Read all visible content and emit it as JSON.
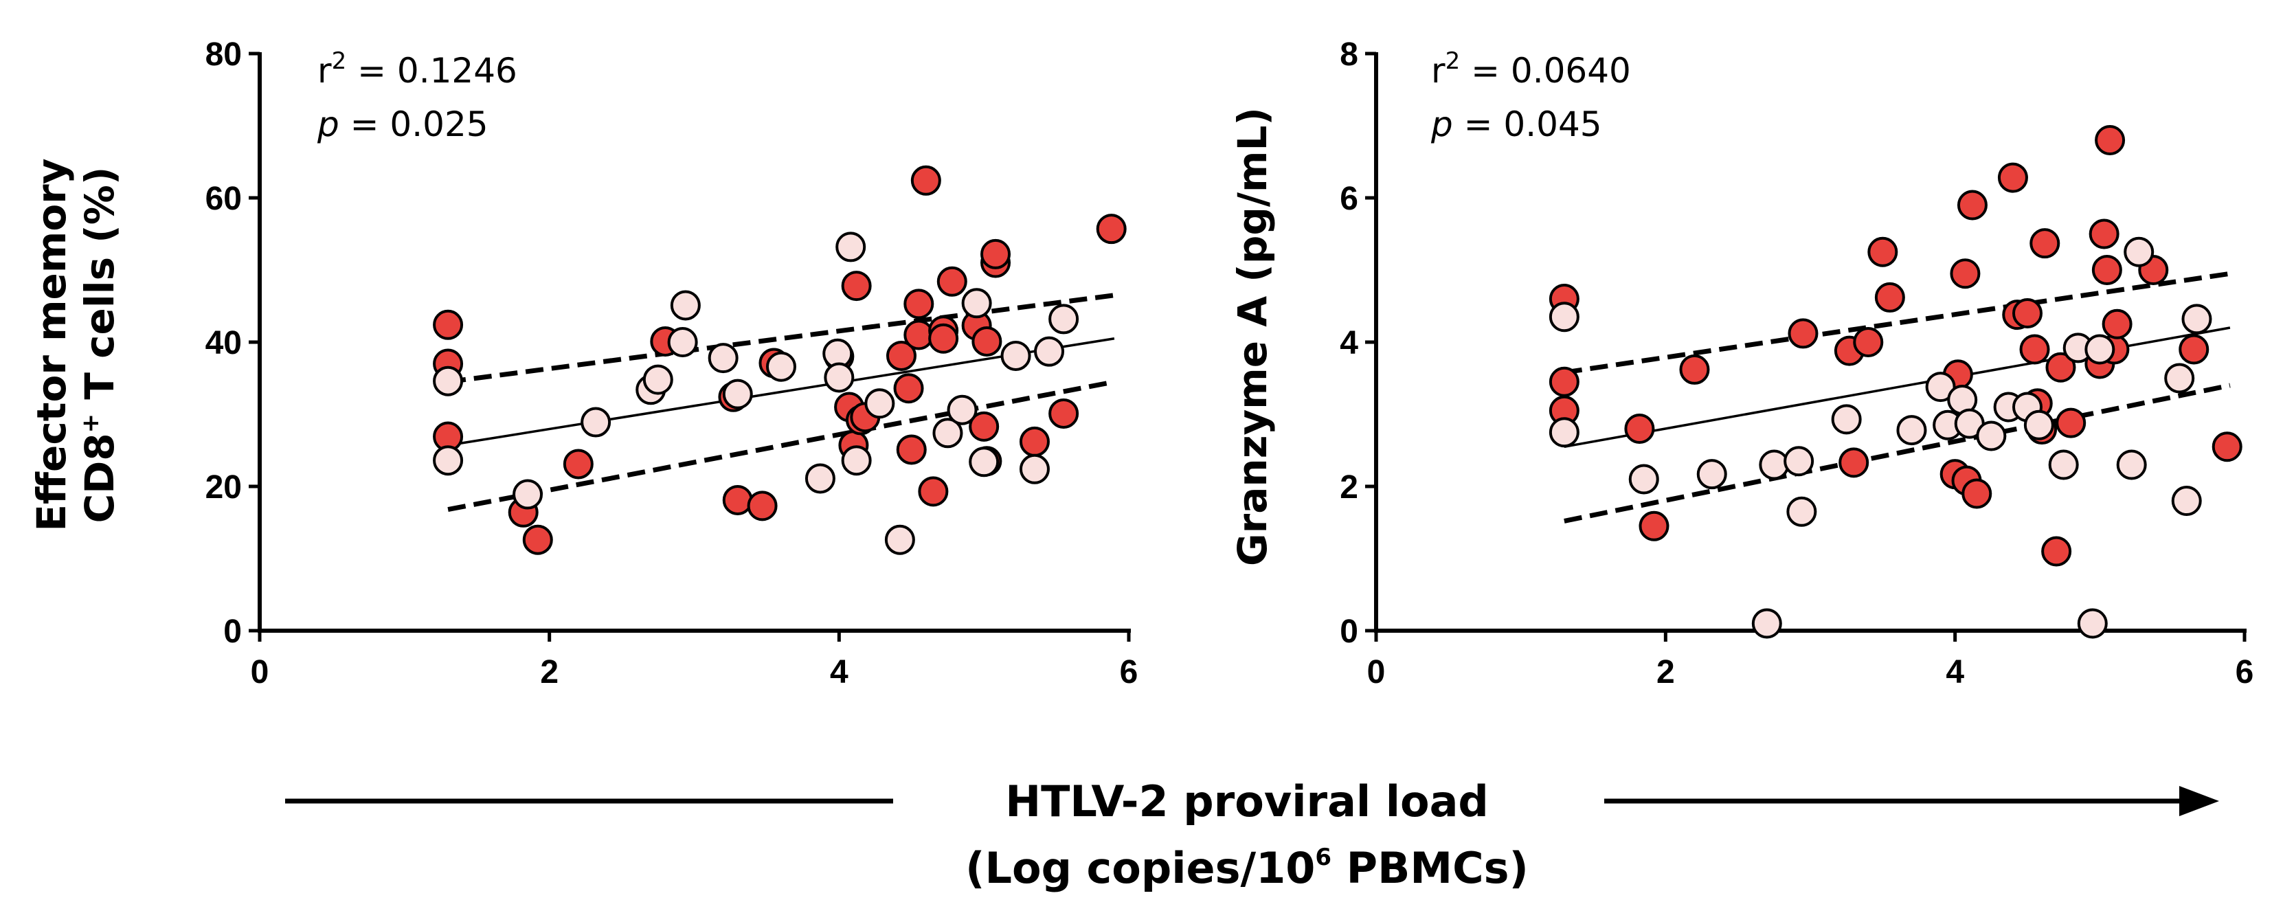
{
  "x_axis_shared": {
    "line1": "HTLV-2 proviral load",
    "line2_pre": "(Log copies/10",
    "line2_sup": "6",
    "line2_post": " PBMCs)"
  },
  "colors": {
    "red_fill": "#e8413c",
    "pink_fill": "#f9e0de",
    "stroke": "#000000"
  },
  "chart_data": [
    {
      "type": "scatter",
      "title": "",
      "ylabel_line1": "Effector memory",
      "ylabel_line2_pre": "CD8",
      "ylabel_line2_sup": "+",
      "ylabel_line2_post": " T cells (%)",
      "xlabel": "HTLV-2 proviral load (Log copies/10^6 PBMCs)",
      "xlim": [
        0,
        6
      ],
      "ylim": [
        0,
        80
      ],
      "xticks": [
        "0",
        "2",
        "4",
        "6"
      ],
      "yticks": [
        "0",
        "20",
        "40",
        "60",
        "80"
      ],
      "r2_label": "r",
      "r2_sup": "2",
      "r2_value": " = 0.1246",
      "p_label": "p",
      "p_value": " = 0.025",
      "fit": {
        "x": [
          1.3,
          5.9
        ],
        "y": [
          25.7,
          40.5
        ]
      },
      "ci_upper": {
        "x": [
          1.3,
          5.9
        ],
        "y": [
          34.5,
          46.5
        ]
      },
      "ci_lower": {
        "x": [
          1.3,
          5.9
        ],
        "y": [
          16.8,
          34.5
        ]
      },
      "series": [
        {
          "name": "red",
          "color": "#e8413c",
          "x": [
            1.3,
            1.3,
            1.3,
            1.82,
            1.92,
            2.2,
            2.8,
            3.27,
            3.3,
            3.47,
            3.55,
            4.0,
            4.07,
            4.1,
            4.12,
            4.15,
            4.18,
            4.43,
            4.48,
            4.5,
            4.55,
            4.55,
            4.6,
            4.65,
            4.72,
            4.72,
            4.78,
            4.95,
            5.0,
            5.02,
            5.02,
            5.08,
            5.08,
            5.35,
            5.55,
            5.88
          ],
          "y": [
            42.4,
            37.0,
            26.9,
            16.4,
            12.6,
            23.1,
            40.1,
            32.4,
            18.1,
            17.3,
            37.1,
            38.0,
            31.0,
            25.7,
            47.8,
            29.2,
            29.6,
            38.1,
            33.6,
            25.1,
            41.0,
            45.3,
            62.4,
            19.3,
            41.6,
            40.5,
            48.4,
            42.3,
            28.3,
            40.1,
            23.5,
            51.0,
            52.2,
            26.2,
            30.1,
            55.7
          ]
        },
        {
          "name": "pink",
          "color": "#f9e0de",
          "x": [
            1.3,
            1.3,
            1.85,
            2.32,
            2.7,
            2.75,
            2.92,
            2.94,
            3.2,
            3.3,
            3.6,
            3.87,
            3.99,
            4.0,
            4.08,
            4.12,
            4.28,
            4.42,
            4.75,
            4.85,
            4.95,
            5.0,
            5.22,
            5.35,
            5.45,
            5.55
          ],
          "y": [
            34.6,
            23.6,
            18.9,
            28.9,
            33.4,
            34.8,
            40.0,
            45.1,
            37.8,
            32.8,
            36.6,
            21.1,
            38.4,
            35.1,
            53.2,
            23.6,
            31.5,
            12.6,
            27.4,
            30.6,
            45.4,
            23.4,
            38.1,
            22.4,
            38.7,
            43.2
          ]
        }
      ]
    },
    {
      "type": "scatter",
      "title": "",
      "ylabel": "Granzyme A (pg/mL)",
      "xlabel": "HTLV-2 proviral load (Log copies/10^6 PBMCs)",
      "xlim": [
        0,
        6
      ],
      "ylim": [
        0,
        8
      ],
      "xticks": [
        "0",
        "2",
        "4",
        "6"
      ],
      "yticks": [
        "0",
        "2",
        "4",
        "6",
        "8"
      ],
      "r2_label": "r",
      "r2_sup": "2",
      "r2_value": " = 0.0640",
      "p_label": "p",
      "p_value": " = 0.045",
      "fit": {
        "x": [
          1.3,
          5.9
        ],
        "y": [
          2.55,
          4.2
        ]
      },
      "ci_upper": {
        "x": [
          1.3,
          5.9
        ],
        "y": [
          3.58,
          4.95
        ]
      },
      "ci_lower": {
        "x": [
          1.3,
          5.9
        ],
        "y": [
          1.52,
          3.4
        ]
      },
      "series": [
        {
          "name": "red",
          "color": "#e8413c",
          "x": [
            1.3,
            1.3,
            1.3,
            1.82,
            1.92,
            2.2,
            2.95,
            3.27,
            3.3,
            3.4,
            3.5,
            3.55,
            4.0,
            4.02,
            4.07,
            4.08,
            4.12,
            4.15,
            4.4,
            4.43,
            4.5,
            4.55,
            4.57,
            4.6,
            4.62,
            4.7,
            4.73,
            4.8,
            5.0,
            5.03,
            5.05,
            5.07,
            5.1,
            5.12,
            5.37,
            5.65,
            5.88
          ],
          "y": [
            4.6,
            3.45,
            3.05,
            2.8,
            1.45,
            3.62,
            4.12,
            3.88,
            2.33,
            4.0,
            5.25,
            4.62,
            2.17,
            3.55,
            4.95,
            2.08,
            5.9,
            1.9,
            6.28,
            4.38,
            4.4,
            3.9,
            3.15,
            2.79,
            5.37,
            1.1,
            3.65,
            2.88,
            3.7,
            5.5,
            5.0,
            6.8,
            3.9,
            4.25,
            5.0,
            3.9,
            2.55
          ]
        },
        {
          "name": "pink",
          "color": "#f9e0de",
          "x": [
            1.3,
            1.3,
            1.85,
            2.32,
            2.7,
            2.75,
            2.92,
            2.94,
            3.25,
            3.7,
            3.9,
            3.95,
            4.05,
            4.1,
            4.25,
            4.37,
            4.5,
            4.58,
            4.75,
            4.85,
            4.95,
            5.0,
            5.22,
            5.27,
            5.55,
            5.6,
            5.67
          ],
          "y": [
            4.35,
            2.75,
            2.1,
            2.17,
            0.1,
            2.3,
            2.35,
            1.65,
            2.93,
            2.78,
            3.38,
            2.85,
            3.2,
            2.87,
            2.7,
            3.1,
            3.1,
            2.85,
            2.3,
            3.92,
            0.1,
            3.9,
            2.3,
            5.25,
            3.5,
            1.8,
            4.32
          ]
        }
      ]
    }
  ]
}
